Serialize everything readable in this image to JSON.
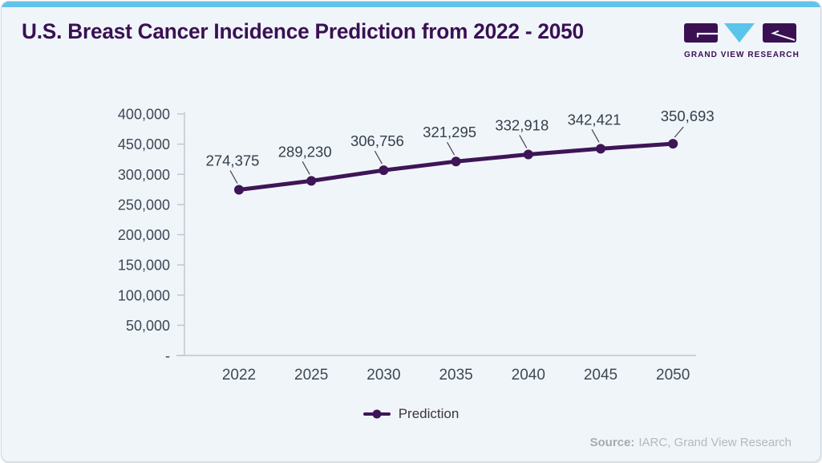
{
  "header": {
    "title": "U.S. Breast Cancer Incidence Prediction from 2022 - 2050",
    "logo_text": "GRAND VIEW RESEARCH"
  },
  "colors": {
    "accent": "#61c3ea",
    "card_bg": "#f0f5fa",
    "border": "#c9d9e6",
    "title": "#3a1053",
    "line": "#3e1556",
    "axis": "#bcc6cf",
    "axis_text": "#3d4854",
    "label_text": "#343f4a",
    "leader": "#4a4150",
    "source": "#b3b9bf",
    "logo_blue": "#5bc4ea"
  },
  "chart_data": {
    "type": "line",
    "title": "U.S. Breast Cancer Incidence Prediction from 2022 - 2050",
    "categories": [
      "2022",
      "2025",
      "2030",
      "2035",
      "2040",
      "2045",
      "2050"
    ],
    "series": [
      {
        "name": "Prediction",
        "values": [
          274375,
          289230,
          306756,
          321295,
          332918,
          342421,
          350693
        ]
      }
    ],
    "point_labels": [
      "274,375",
      "289,230",
      "306,756",
      "321,295",
      "332,918",
      "342,421",
      "350,693"
    ],
    "y_axis_tick_labels_top_to_bottom": [
      "400,000",
      "450,000",
      "300,000",
      "250,000",
      "200,000",
      "150,000",
      "100,000",
      "50,000",
      "-"
    ],
    "ylim": [
      0,
      400000
    ],
    "grid": "off",
    "legend_position": "bottom",
    "legend_entries": [
      "Prediction"
    ]
  },
  "source": {
    "prefix": "Source:",
    "text": "IARC, Grand View Research"
  }
}
